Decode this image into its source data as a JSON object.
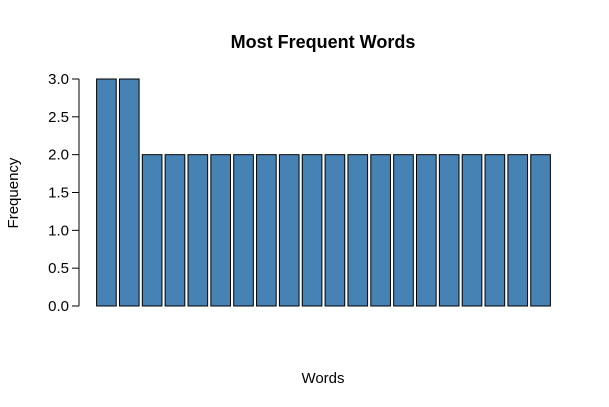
{
  "chart_data": {
    "type": "bar",
    "title": "Most Frequent Words",
    "xlabel": "Words",
    "ylabel": "Frequency",
    "categories": [
      "",
      "",
      "",
      "",
      "",
      "",
      "",
      "",
      "",
      "",
      "",
      "",
      "",
      "",
      "",
      "",
      "",
      "",
      "",
      ""
    ],
    "values": [
      3,
      3,
      2,
      2,
      2,
      2,
      2,
      2,
      2,
      2,
      2,
      2,
      2,
      2,
      2,
      2,
      2,
      2,
      2,
      2
    ],
    "ylim": [
      0,
      3
    ],
    "yticks": [
      "0.0",
      "0.5",
      "1.0",
      "1.5",
      "2.0",
      "2.5",
      "3.0"
    ],
    "grid": false,
    "bar_color": "#4682B4",
    "bar_edge_color": "#000000"
  }
}
